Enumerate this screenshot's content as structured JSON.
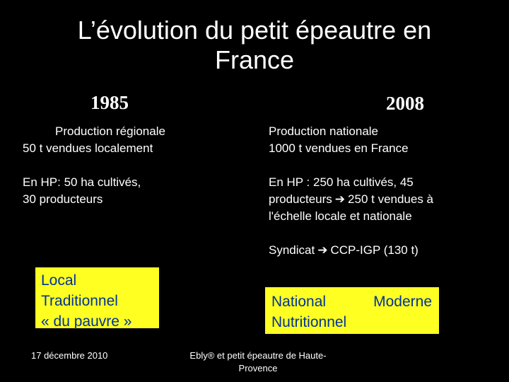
{
  "slide": {
    "title": "L’évolution du petit épeautre en France",
    "columns": {
      "left": {
        "year": "1985",
        "line1": "Production régionale",
        "line2": "50 t vendues localement",
        "line3": "En HP: 50 ha cultivés,",
        "line4": "30 producteurs"
      },
      "right": {
        "year": "2008",
        "line1": "Production nationale",
        "line2": "1000 t vendues en France",
        "line3": "En HP : 250 ha cultivés, 45",
        "line4a": "producteurs",
        "line4b": "250 t vendues à",
        "line5": "l'échelle locale et nationale",
        "line6a": "Syndicat",
        "line6b": "CCP-IGP (130 t)"
      }
    },
    "boxes": {
      "left": {
        "line1": "Local",
        "line2": "Traditionnel",
        "line3": "« du pauvre »"
      },
      "right": {
        "word1": "National",
        "word2": "Moderne",
        "line2": "Nutritionnel"
      }
    },
    "footer": {
      "date": "17 décembre 2010",
      "source": "Ebly® et petit épeautre de Haute-Provence"
    },
    "icons": {
      "arrow": "➔"
    },
    "colors": {
      "background": "#000000",
      "text": "#ffffff",
      "box_fill": "#ffff22",
      "box_text": "#003399"
    }
  }
}
